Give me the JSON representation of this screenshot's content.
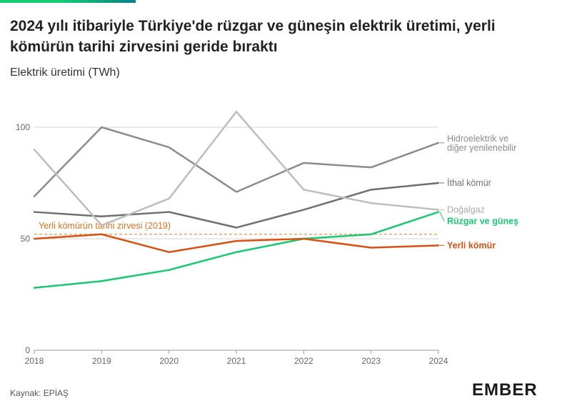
{
  "header": {
    "title": "2024 yılı itibariyle Türkiye'de rüzgar ve güneşin elektrik üretimi, yerli kömürün tarihi zirvesini geride bıraktı",
    "subtitle": "Elektrik üretimi (TWh)"
  },
  "footer": {
    "source": "Kaynak: EPİAŞ",
    "brand": "EMBER"
  },
  "chart_data": {
    "type": "line",
    "title": "2024 yılı itibariyle Türkiye'de rüzgar ve güneşin elektrik üretimi, yerli kömürün tarihi zirvesini geride bıraktı",
    "ylabel": "Elektrik üretimi (TWh)",
    "xlabel": "",
    "x": [
      "2018",
      "2019",
      "2020",
      "2021",
      "2022",
      "2023",
      "2024"
    ],
    "ylim": [
      0,
      115
    ],
    "yticks": [
      "0",
      "50",
      "100"
    ],
    "grid": true,
    "legend": "direct-labels-right",
    "series": [
      {
        "name": "Hidroelektrik ve diğer yenilenebilir",
        "color": "#8c8c8c",
        "label_lines": [
          "Hidroelektrik ve",
          "diğer yenilenebilir"
        ],
        "values": [
          69,
          100,
          91,
          71,
          84,
          82,
          93
        ]
      },
      {
        "name": "İthal kömür",
        "color": "#6f6f6f",
        "label_lines": [
          "İthal kömür"
        ],
        "values": [
          62,
          60,
          62,
          55,
          63,
          72,
          75
        ]
      },
      {
        "name": "Doğalgaz",
        "color": "#bdbdbd",
        "label_lines": [
          "Doğalgaz"
        ],
        "values": [
          90,
          56,
          68,
          107,
          72,
          66,
          63
        ]
      },
      {
        "name": "Rüzgar ve güneş",
        "color": "#17c971",
        "label_lines": [
          "Rüzgar ve güneş"
        ],
        "values": [
          28,
          31,
          36,
          44,
          50,
          52,
          62
        ]
      },
      {
        "name": "Yerli kömür",
        "color": "#d9500f",
        "label_lines": [
          "Yerli kömür"
        ],
        "values": [
          50,
          52,
          44,
          49,
          50,
          46,
          47
        ]
      }
    ],
    "annotations": [
      {
        "text": "Yerli kömürün tarihi zirvesi (2019)",
        "value": 52,
        "color": "#f2a36b"
      }
    ]
  }
}
